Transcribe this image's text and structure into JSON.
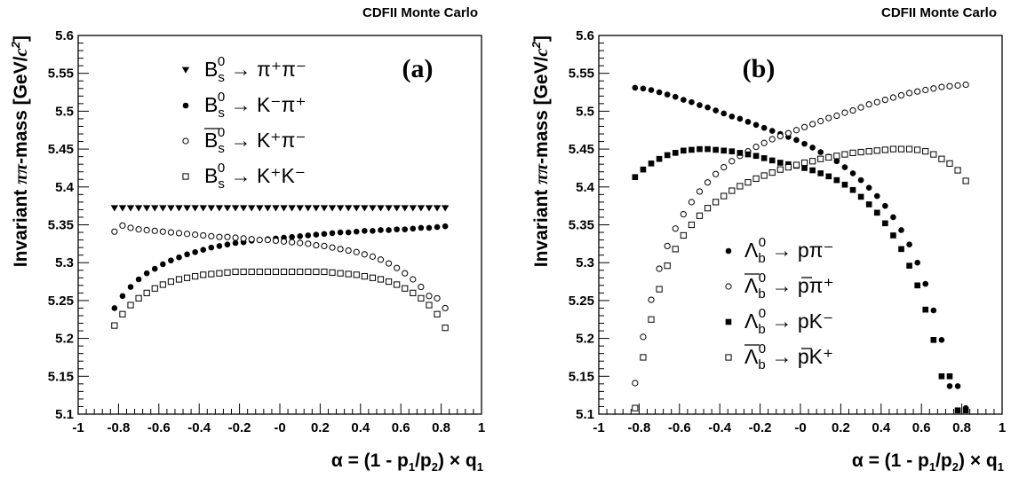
{
  "chart_data": [
    {
      "type": "scatter",
      "header": "CDFII Monte Carlo",
      "panel_label": "(a)",
      "ylabel": "Invariant ππ-mass [GeV/c²]",
      "ylabel_parts": {
        "a": "Invariant ",
        "b": "ππ",
        "c": "-mass [GeV/",
        "d": "c",
        "e": "2",
        "f": "]"
      },
      "xlabel": "α = (1 - p1/p2) × q1",
      "xlabel_parts": {
        "a": "α = (1 - p",
        "b": "1",
        "c": "/p",
        "d": "2",
        "e": ") × q",
        "f": "1"
      },
      "xlim": [
        -1,
        1
      ],
      "ylim": [
        5.1,
        5.6
      ],
      "x_ticks": [
        "-1",
        "-0.8",
        "-0.6",
        "-0.4",
        "-0.2",
        "-0",
        "0.2",
        "0.4",
        "0.6",
        "0.8",
        "1"
      ],
      "y_ticks": [
        "5.1",
        "5.15",
        "5.2",
        "5.25",
        "5.3",
        "5.35",
        "5.4",
        "5.45",
        "5.5",
        "5.55",
        "5.6"
      ],
      "legend_position": "top-center",
      "series": [
        {
          "marker": "triangle-down",
          "legend": {
            "sup": "0",
            "sub": "s",
            "arrow": " → ",
            "prod": "π⁺π⁻",
            "bar": false,
            "head": "B"
          },
          "x": [
            -0.82,
            -0.78,
            -0.74,
            -0.7,
            -0.66,
            -0.62,
            -0.58,
            -0.54,
            -0.5,
            -0.46,
            -0.42,
            -0.38,
            -0.34,
            -0.3,
            -0.26,
            -0.22,
            -0.18,
            -0.14,
            -0.1,
            -0.06,
            -0.02,
            0.02,
            0.06,
            0.1,
            0.14,
            0.18,
            0.22,
            0.26,
            0.3,
            0.34,
            0.38,
            0.42,
            0.46,
            0.5,
            0.54,
            0.58,
            0.62,
            0.66,
            0.7,
            0.74,
            0.78,
            0.82
          ],
          "y": [
            5.372,
            5.372,
            5.372,
            5.372,
            5.372,
            5.372,
            5.372,
            5.372,
            5.372,
            5.372,
            5.372,
            5.372,
            5.372,
            5.372,
            5.372,
            5.372,
            5.372,
            5.372,
            5.372,
            5.372,
            5.372,
            5.372,
            5.372,
            5.372,
            5.372,
            5.372,
            5.372,
            5.372,
            5.372,
            5.372,
            5.372,
            5.372,
            5.372,
            5.372,
            5.372,
            5.372,
            5.372,
            5.372,
            5.372,
            5.372,
            5.372,
            5.372
          ]
        },
        {
          "marker": "circle-filled",
          "legend": {
            "sup": "0",
            "sub": "s",
            "arrow": " → ",
            "prod": "K⁻π⁺",
            "bar": false,
            "head": "B"
          },
          "x": [
            -0.82,
            -0.78,
            -0.74,
            -0.7,
            -0.66,
            -0.62,
            -0.58,
            -0.54,
            -0.5,
            -0.46,
            -0.42,
            -0.38,
            -0.34,
            -0.3,
            -0.26,
            -0.22,
            -0.18,
            -0.14,
            -0.1,
            -0.06,
            -0.02,
            0.02,
            0.06,
            0.1,
            0.14,
            0.18,
            0.22,
            0.26,
            0.3,
            0.34,
            0.38,
            0.42,
            0.46,
            0.5,
            0.54,
            0.58,
            0.62,
            0.66,
            0.7,
            0.74,
            0.78,
            0.82
          ],
          "y": [
            5.24,
            5.256,
            5.268,
            5.278,
            5.286,
            5.292,
            5.298,
            5.303,
            5.307,
            5.311,
            5.314,
            5.317,
            5.32,
            5.322,
            5.324,
            5.326,
            5.327,
            5.329,
            5.33,
            5.331,
            5.332,
            5.333,
            5.334,
            5.335,
            5.336,
            5.337,
            5.338,
            5.339,
            5.34,
            5.34,
            5.341,
            5.342,
            5.342,
            5.343,
            5.343,
            5.344,
            5.344,
            5.345,
            5.346,
            5.346,
            5.347,
            5.348
          ]
        },
        {
          "marker": "circle-open",
          "legend": {
            "sup": "0",
            "sub": "s",
            "arrow": " → ",
            "prod": "K⁺π⁻",
            "bar": true,
            "head": "B"
          },
          "x": [
            -0.82,
            -0.78,
            -0.74,
            -0.7,
            -0.66,
            -0.62,
            -0.58,
            -0.54,
            -0.5,
            -0.46,
            -0.42,
            -0.38,
            -0.34,
            -0.3,
            -0.26,
            -0.22,
            -0.18,
            -0.14,
            -0.1,
            -0.06,
            -0.02,
            0.02,
            0.06,
            0.1,
            0.14,
            0.18,
            0.22,
            0.26,
            0.3,
            0.34,
            0.38,
            0.42,
            0.46,
            0.5,
            0.54,
            0.58,
            0.62,
            0.66,
            0.7,
            0.74,
            0.78,
            0.82
          ],
          "y": [
            5.341,
            5.349,
            5.346,
            5.344,
            5.343,
            5.342,
            5.341,
            5.34,
            5.339,
            5.338,
            5.337,
            5.336,
            5.335,
            5.334,
            5.334,
            5.333,
            5.332,
            5.331,
            5.33,
            5.33,
            5.329,
            5.328,
            5.327,
            5.326,
            5.325,
            5.323,
            5.322,
            5.32,
            5.318,
            5.316,
            5.314,
            5.311,
            5.308,
            5.304,
            5.299,
            5.293,
            5.286,
            5.278,
            5.268,
            5.256,
            5.253,
            5.24
          ]
        },
        {
          "marker": "square-open",
          "legend": {
            "sup": "0",
            "sub": "s",
            "arrow": " → ",
            "prod": "K⁺K⁻",
            "bar": false,
            "head": "B"
          },
          "x": [
            -0.82,
            -0.78,
            -0.74,
            -0.7,
            -0.66,
            -0.62,
            -0.58,
            -0.54,
            -0.5,
            -0.46,
            -0.42,
            -0.38,
            -0.34,
            -0.3,
            -0.26,
            -0.22,
            -0.18,
            -0.14,
            -0.1,
            -0.06,
            -0.02,
            0.02,
            0.06,
            0.1,
            0.14,
            0.18,
            0.22,
            0.26,
            0.3,
            0.34,
            0.38,
            0.42,
            0.46,
            0.5,
            0.54,
            0.58,
            0.62,
            0.66,
            0.7,
            0.74,
            0.78,
            0.82
          ],
          "y": [
            5.217,
            5.232,
            5.244,
            5.253,
            5.26,
            5.266,
            5.271,
            5.275,
            5.278,
            5.28,
            5.282,
            5.284,
            5.285,
            5.286,
            5.287,
            5.288,
            5.288,
            5.288,
            5.288,
            5.288,
            5.288,
            5.288,
            5.288,
            5.288,
            5.288,
            5.288,
            5.288,
            5.287,
            5.286,
            5.285,
            5.284,
            5.282,
            5.28,
            5.278,
            5.275,
            5.271,
            5.266,
            5.26,
            5.253,
            5.244,
            5.232,
            5.214
          ]
        }
      ]
    },
    {
      "type": "scatter",
      "header": "CDFII Monte Carlo",
      "panel_label": "(b)",
      "ylabel": "Invariant ππ-mass [GeV/c²]",
      "ylabel_parts": {
        "a": "Invariant ",
        "b": "ππ",
        "c": "-mass [GeV/",
        "d": "c",
        "e": "2",
        "f": "]"
      },
      "xlabel": "α = (1 - p1/p2) × q1",
      "xlabel_parts": {
        "a": "α = (1 - p",
        "b": "1",
        "c": "/p",
        "d": "2",
        "e": ") × q",
        "f": "1"
      },
      "xlim": [
        -1,
        1
      ],
      "ylim": [
        5.1,
        5.6
      ],
      "x_ticks": [
        "-1",
        "-0.8",
        "-0.6",
        "-0.4",
        "-0.2",
        "-0",
        "0.2",
        "0.4",
        "0.6",
        "0.8",
        "1"
      ],
      "y_ticks": [
        "5.1",
        "5.15",
        "5.2",
        "5.25",
        "5.3",
        "5.35",
        "5.4",
        "5.45",
        "5.5",
        "5.55",
        "5.6"
      ],
      "legend_position": "bottom-center",
      "series": [
        {
          "marker": "circle-filled",
          "legend": {
            "sup": "0",
            "sub": "b",
            "arrow": " → ",
            "prod": "pπ⁻",
            "bar": false,
            "head": "Λ",
            "prod_bar": false
          },
          "x": [
            -0.82,
            -0.78,
            -0.74,
            -0.7,
            -0.66,
            -0.62,
            -0.58,
            -0.54,
            -0.5,
            -0.46,
            -0.42,
            -0.38,
            -0.34,
            -0.3,
            -0.26,
            -0.22,
            -0.18,
            -0.14,
            -0.1,
            -0.06,
            -0.02,
            0.02,
            0.06,
            0.1,
            0.14,
            0.18,
            0.22,
            0.26,
            0.3,
            0.34,
            0.38,
            0.42,
            0.46,
            0.5,
            0.54,
            0.58,
            0.62,
            0.66,
            0.7,
            0.74,
            0.78,
            0.82
          ],
          "y": [
            5.531,
            5.53,
            5.528,
            5.525,
            5.522,
            5.519,
            5.515,
            5.512,
            5.508,
            5.505,
            5.501,
            5.497,
            5.493,
            5.49,
            5.486,
            5.482,
            5.478,
            5.474,
            5.47,
            5.466,
            5.462,
            5.457,
            5.452,
            5.446,
            5.44,
            5.434,
            5.426,
            5.418,
            5.409,
            5.399,
            5.388,
            5.375,
            5.36,
            5.343,
            5.324,
            5.3,
            5.272,
            5.237,
            5.198,
            5.137,
            5.137,
            5.108
          ]
        },
        {
          "marker": "circle-open",
          "legend": {
            "sup": "0",
            "sub": "b",
            "arrow": " → ",
            "prod": "pπ⁺",
            "bar": true,
            "head": "Λ",
            "prod_bar": true
          },
          "x": [
            -0.82,
            -0.78,
            -0.74,
            -0.7,
            -0.66,
            -0.62,
            -0.58,
            -0.54,
            -0.5,
            -0.46,
            -0.42,
            -0.38,
            -0.34,
            -0.3,
            -0.26,
            -0.22,
            -0.18,
            -0.14,
            -0.1,
            -0.06,
            -0.02,
            0.02,
            0.06,
            0.1,
            0.14,
            0.18,
            0.22,
            0.26,
            0.3,
            0.34,
            0.38,
            0.42,
            0.46,
            0.5,
            0.54,
            0.58,
            0.62,
            0.66,
            0.7,
            0.74,
            0.78,
            0.82
          ],
          "y": [
            5.141,
            5.202,
            5.251,
            5.292,
            5.322,
            5.345,
            5.364,
            5.38,
            5.394,
            5.406,
            5.417,
            5.426,
            5.434,
            5.441,
            5.447,
            5.453,
            5.458,
            5.463,
            5.467,
            5.471,
            5.475,
            5.479,
            5.483,
            5.487,
            5.491,
            5.494,
            5.498,
            5.501,
            5.505,
            5.509,
            5.512,
            5.515,
            5.518,
            5.521,
            5.524,
            5.526,
            5.528,
            5.53,
            5.532,
            5.533,
            5.534,
            5.535
          ]
        },
        {
          "marker": "square-filled",
          "legend": {
            "sup": "0",
            "sub": "b",
            "arrow": " → ",
            "prod": "pK⁻",
            "bar": false,
            "head": "Λ",
            "prod_bar": false
          },
          "x": [
            -0.82,
            -0.78,
            -0.74,
            -0.7,
            -0.66,
            -0.62,
            -0.58,
            -0.54,
            -0.5,
            -0.46,
            -0.42,
            -0.38,
            -0.34,
            -0.3,
            -0.26,
            -0.22,
            -0.18,
            -0.14,
            -0.1,
            -0.06,
            -0.02,
            0.02,
            0.06,
            0.1,
            0.14,
            0.18,
            0.22,
            0.26,
            0.3,
            0.34,
            0.38,
            0.42,
            0.46,
            0.5,
            0.54,
            0.58,
            0.62,
            0.66,
            0.7,
            0.74,
            0.78,
            0.82
          ],
          "y": [
            5.413,
            5.423,
            5.431,
            5.437,
            5.442,
            5.445,
            5.448,
            5.449,
            5.45,
            5.45,
            5.449,
            5.448,
            5.447,
            5.445,
            5.443,
            5.441,
            5.438,
            5.435,
            5.432,
            5.43,
            5.428,
            5.425,
            5.422,
            5.418,
            5.414,
            5.409,
            5.403,
            5.396,
            5.387,
            5.377,
            5.366,
            5.352,
            5.336,
            5.318,
            5.296,
            5.27,
            5.238,
            5.198,
            5.15,
            5.15,
            5.105,
            5.105
          ]
        },
        {
          "marker": "square-open",
          "legend": {
            "sup": "0",
            "sub": "b",
            "arrow": " → ",
            "prod": "pK⁺",
            "bar": true,
            "head": "Λ",
            "prod_bar": true
          },
          "x": [
            -0.82,
            -0.78,
            -0.74,
            -0.7,
            -0.66,
            -0.62,
            -0.58,
            -0.54,
            -0.5,
            -0.46,
            -0.42,
            -0.38,
            -0.34,
            -0.3,
            -0.26,
            -0.22,
            -0.18,
            -0.14,
            -0.1,
            -0.06,
            -0.02,
            0.02,
            0.06,
            0.1,
            0.14,
            0.18,
            0.22,
            0.26,
            0.3,
            0.34,
            0.38,
            0.42,
            0.46,
            0.5,
            0.54,
            0.58,
            0.62,
            0.66,
            0.7,
            0.74,
            0.78,
            0.82
          ],
          "y": [
            5.108,
            5.175,
            5.225,
            5.265,
            5.296,
            5.318,
            5.336,
            5.35,
            5.362,
            5.372,
            5.38,
            5.388,
            5.395,
            5.401,
            5.406,
            5.411,
            5.415,
            5.419,
            5.423,
            5.426,
            5.429,
            5.432,
            5.434,
            5.437,
            5.439,
            5.441,
            5.443,
            5.445,
            5.446,
            5.447,
            5.448,
            5.449,
            5.45,
            5.45,
            5.45,
            5.449,
            5.447,
            5.443,
            5.437,
            5.431,
            5.422,
            5.408
          ]
        }
      ]
    }
  ]
}
